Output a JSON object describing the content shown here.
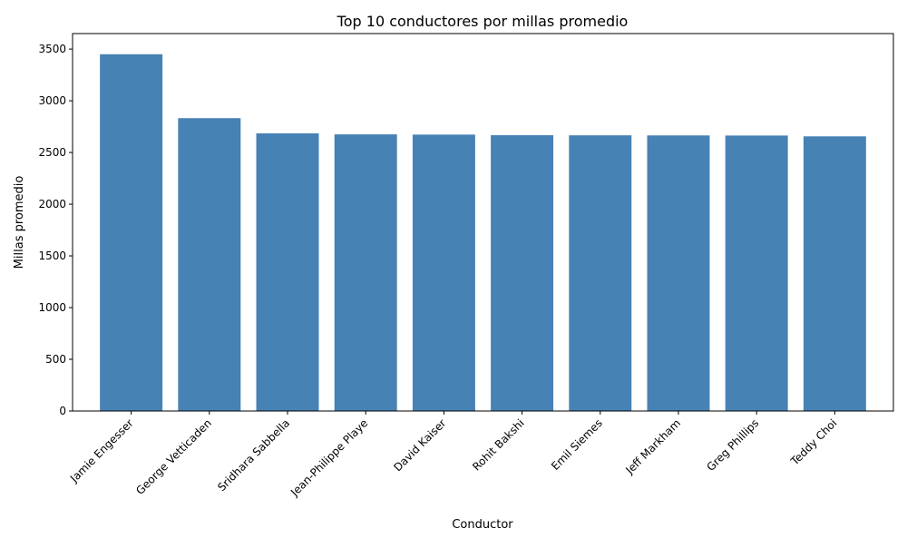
{
  "chart_data": {
    "type": "bar",
    "title": "Top 10 conductores por millas promedio",
    "xlabel": "Conductor",
    "ylabel": "Millas promedio",
    "categories": [
      "Jamie Engesser",
      "George Vetticaden",
      "Sridhara Sabbella",
      "Jean-Philippe Playe",
      "David Kaiser",
      "Rohit Bakshi",
      "Emil Siemes",
      "Jeff Markham",
      "Greg Phillips",
      "Teddy Choi"
    ],
    "values": [
      3450,
      2832,
      2685,
      2675,
      2673,
      2667,
      2666,
      2665,
      2664,
      2656
    ],
    "ylim": [
      0,
      3650
    ],
    "yticks": [
      0,
      500,
      1000,
      1500,
      2000,
      2500,
      3000,
      3500
    ],
    "ytick_labels": [
      "0",
      "500",
      "1000",
      "1500",
      "2000",
      "2500",
      "3000",
      "3500"
    ],
    "bar_color": "#4682B4",
    "grid": false,
    "legend": false
  }
}
